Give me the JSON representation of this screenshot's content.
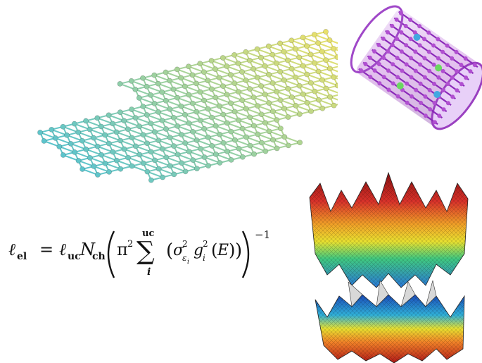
{
  "formula": {
    "lhs_symbol": "ℓ",
    "lhs_sub": "el",
    "equals": "=",
    "uc_symbol": "ℓ",
    "uc_sub": "uc",
    "N_symbol": "N",
    "N_sub": "ch",
    "pi": "π",
    "pi_exp": "2",
    "sum": "∑",
    "sum_upper": "uc",
    "sum_lower": "i",
    "sigma": "σ",
    "sigma_sup": "2",
    "sigma_sub": "ε",
    "sigma_sub_sub": "i",
    "g": "g",
    "g_sup": "2",
    "g_sub": "i",
    "E": "E",
    "exponent": "−1"
  },
  "colors": {
    "graphene_start": "#5cc4cc",
    "graphene_end": "#e9e06a",
    "nanotube": "#b04fd0",
    "band_top": "#c0302a",
    "band_mid": "#e8d030",
    "band_low": "#2a8ad8"
  }
}
